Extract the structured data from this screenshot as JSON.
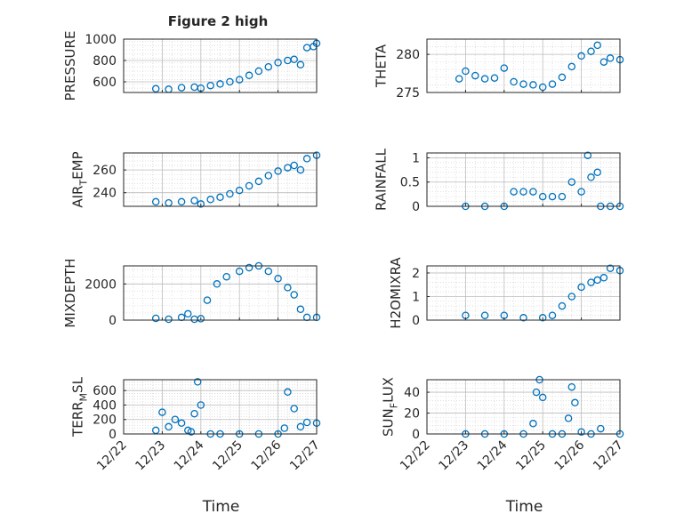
{
  "figure_title": "Figure 2 high",
  "marker_color": "#0072BD",
  "x_tick_labels": [
    "12/22",
    "12/23",
    "12/24",
    "12/25",
    "12/26",
    "12/27"
  ],
  "x_label": "Time",
  "chart_data": [
    {
      "type": "scatter",
      "ylabel": "PRESSURE",
      "xlim": [
        "12/22",
        "12/27"
      ],
      "ylim": [
        500,
        1000
      ],
      "yticks": [
        600,
        800,
        1000
      ],
      "grid": "on (major + minor)",
      "series": [
        {
          "x": [
            "12/22 20:00",
            "12/23 04:00",
            "12/23 12:00",
            "12/23 20:00",
            "12/24 00:00",
            "12/24 06:00",
            "12/24 12:00",
            "12/24 18:00",
            "12/25 00:00",
            "12/25 06:00",
            "12/25 12:00",
            "12/25 18:00",
            "12/26 00:00",
            "12/26 06:00",
            "12/26 10:00",
            "12/26 14:00",
            "12/26 18:00",
            "12/26 22:00",
            "12/27 00:00"
          ],
          "y": [
            535,
            530,
            545,
            550,
            540,
            565,
            580,
            600,
            620,
            660,
            700,
            740,
            780,
            800,
            810,
            760,
            920,
            930,
            960
          ]
        }
      ]
    },
    {
      "type": "scatter",
      "ylabel": "THETA",
      "xlim": [
        "12/22",
        "12/27"
      ],
      "ylim": [
        275,
        282
      ],
      "yticks": [
        275,
        280
      ],
      "grid": "on (major + minor)",
      "series": [
        {
          "x": [
            "12/22 20:00",
            "12/23 00:00",
            "12/23 06:00",
            "12/23 12:00",
            "12/23 18:00",
            "12/24 00:00",
            "12/24 06:00",
            "12/24 12:00",
            "12/24 18:00",
            "12/25 00:00",
            "12/25 06:00",
            "12/25 12:00",
            "12/25 18:00",
            "12/26 00:00",
            "12/26 06:00",
            "12/26 10:00",
            "12/26 14:00",
            "12/26 18:00",
            "12/27 00:00"
          ],
          "y": [
            276.8,
            277.8,
            277.2,
            276.8,
            276.9,
            278.2,
            276.4,
            276.1,
            276.0,
            275.7,
            276.1,
            277.0,
            278.4,
            279.8,
            280.4,
            281.2,
            279.0,
            279.5,
            279.3
          ]
        }
      ]
    },
    {
      "type": "scatter",
      "ylabel": "AIR_TEMP",
      "xlim": [
        "12/22",
        "12/27"
      ],
      "ylim": [
        228,
        275
      ],
      "yticks": [
        240,
        260
      ],
      "grid": "on (major + minor)",
      "series": [
        {
          "x": [
            "12/22 20:00",
            "12/23 04:00",
            "12/23 12:00",
            "12/23 20:00",
            "12/24 00:00",
            "12/24 06:00",
            "12/24 12:00",
            "12/24 18:00",
            "12/25 00:00",
            "12/25 06:00",
            "12/25 12:00",
            "12/25 18:00",
            "12/26 00:00",
            "12/26 06:00",
            "12/26 10:00",
            "12/26 14:00",
            "12/26 18:00",
            "12/27 00:00"
          ],
          "y": [
            232,
            231,
            232,
            233,
            230,
            234,
            236,
            239,
            242,
            246,
            250,
            255,
            259,
            262,
            264,
            260,
            270,
            273
          ]
        }
      ]
    },
    {
      "type": "scatter",
      "ylabel": "RAINFALL",
      "xlim": [
        "12/22",
        "12/27"
      ],
      "ylim": [
        0,
        1.1
      ],
      "yticks": [
        0,
        0.5,
        1
      ],
      "grid": "on (major + minor)",
      "series": [
        {
          "x": [
            "12/23 00:00",
            "12/23 12:00",
            "12/24 00:00",
            "12/24 06:00",
            "12/24 12:00",
            "12/24 18:00",
            "12/25 00:00",
            "12/25 06:00",
            "12/25 12:00",
            "12/25 18:00",
            "12/26 00:00",
            "12/26 04:00",
            "12/26 06:00",
            "12/26 10:00",
            "12/26 12:00",
            "12/26 18:00",
            "12/27 00:00"
          ],
          "y": [
            0,
            0,
            0,
            0.3,
            0.3,
            0.3,
            0.2,
            0.2,
            0.2,
            0.5,
            0.3,
            1.05,
            0.6,
            0.7,
            0,
            0,
            0
          ]
        }
      ]
    },
    {
      "type": "scatter",
      "ylabel": "MIXDEPTH",
      "xlim": [
        "12/22",
        "12/27"
      ],
      "ylim": [
        0,
        3000
      ],
      "yticks": [
        0,
        2000
      ],
      "grid": "on (major + minor)",
      "series": [
        {
          "x": [
            "12/22 20:00",
            "12/23 04:00",
            "12/23 12:00",
            "12/23 16:00",
            "12/23 20:00",
            "12/24 00:00",
            "12/24 04:00",
            "12/24 10:00",
            "12/24 16:00",
            "12/25 00:00",
            "12/25 06:00",
            "12/25 12:00",
            "12/25 18:00",
            "12/26 00:00",
            "12/26 06:00",
            "12/26 10:00",
            "12/26 14:00",
            "12/26 18:00",
            "12/27 00:00"
          ],
          "y": [
            100,
            50,
            150,
            350,
            50,
            80,
            1100,
            2000,
            2400,
            2700,
            2900,
            3000,
            2700,
            2300,
            1800,
            1400,
            600,
            150,
            150
          ]
        }
      ]
    },
    {
      "type": "scatter",
      "ylabel": "H2OMIXRA",
      "xlim": [
        "12/22",
        "12/27"
      ],
      "ylim": [
        0,
        2.3
      ],
      "yticks": [
        0,
        1,
        2
      ],
      "grid": "on (major + minor)",
      "series": [
        {
          "x": [
            "12/23 00:00",
            "12/23 12:00",
            "12/24 00:00",
            "12/24 12:00",
            "12/25 00:00",
            "12/25 06:00",
            "12/25 12:00",
            "12/25 18:00",
            "12/26 00:00",
            "12/26 06:00",
            "12/26 10:00",
            "12/26 14:00",
            "12/26 18:00",
            "12/27 00:00"
          ],
          "y": [
            0.2,
            0.2,
            0.2,
            0.1,
            0.1,
            0.2,
            0.6,
            1.0,
            1.4,
            1.6,
            1.7,
            1.8,
            2.2,
            2.1
          ]
        }
      ]
    },
    {
      "type": "scatter",
      "ylabel": "TERR_MSL",
      "xlim": [
        "12/22",
        "12/27"
      ],
      "ylim": [
        0,
        750
      ],
      "yticks": [
        0,
        200,
        400,
        600
      ],
      "grid": "on (major + minor)",
      "series": [
        {
          "x": [
            "12/22 20:00",
            "12/23 00:00",
            "12/23 04:00",
            "12/23 08:00",
            "12/23 12:00",
            "12/23 16:00",
            "12/23 18:00",
            "12/23 20:00",
            "12/23 22:00",
            "12/24 00:00",
            "12/24 06:00",
            "12/24 12:00",
            "12/25 00:00",
            "12/25 12:00",
            "12/26 00:00",
            "12/26 04:00",
            "12/26 06:00",
            "12/26 10:00",
            "12/26 14:00",
            "12/26 18:00",
            "12/27 00:00"
          ],
          "y": [
            50,
            300,
            100,
            200,
            150,
            50,
            30,
            280,
            720,
            400,
            0,
            0,
            0,
            0,
            0,
            80,
            580,
            350,
            100,
            160,
            150
          ]
        }
      ]
    },
    {
      "type": "scatter",
      "ylabel": "SUN_FLUX",
      "xlim": [
        "12/22",
        "12/27"
      ],
      "ylim": [
        0,
        52
      ],
      "yticks": [
        0,
        20,
        40
      ],
      "grid": "on (major + minor)",
      "series": [
        {
          "x": [
            "12/23 00:00",
            "12/23 12:00",
            "12/24 00:00",
            "12/24 12:00",
            "12/24 18:00",
            "12/24 20:00",
            "12/24 22:00",
            "12/25 00:00",
            "12/25 06:00",
            "12/25 12:00",
            "12/25 16:00",
            "12/25 18:00",
            "12/25 20:00",
            "12/26 00:00",
            "12/26 06:00",
            "12/26 12:00",
            "12/27 00:00"
          ],
          "y": [
            0,
            0,
            0,
            0,
            10,
            40,
            52,
            35,
            0,
            0,
            15,
            45,
            30,
            2,
            0,
            5,
            0
          ]
        }
      ]
    }
  ]
}
